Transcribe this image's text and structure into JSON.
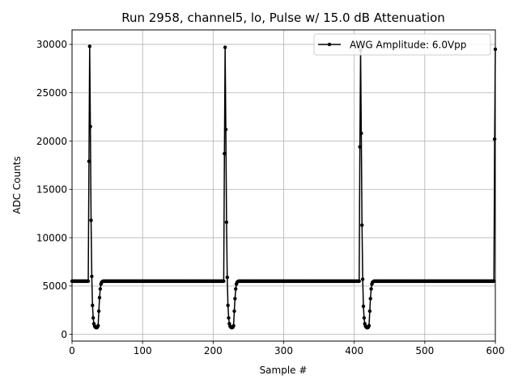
{
  "chart_data": {
    "type": "line",
    "title": "Run 2958, channel5, lo, Pulse w/ 15.0 dB Attenuation",
    "xlabel": "Sample #",
    "ylabel": "ADC Counts",
    "xlim": [
      0,
      600
    ],
    "ylim": [
      -700,
      31500
    ],
    "xticks": [
      0,
      100,
      200,
      300,
      400,
      500,
      600
    ],
    "yticks": [
      0,
      5000,
      10000,
      15000,
      20000,
      25000,
      30000
    ],
    "grid": true,
    "legend_position": "top-right",
    "baseline": 5500,
    "series": [
      {
        "name": "AWG Amplitude: 6.0Vpp",
        "color": "#000000",
        "marker": "point",
        "x": [
          24,
          25,
          26,
          27,
          28,
          29,
          30,
          31,
          32,
          33,
          34,
          35,
          36,
          37,
          38,
          39,
          40,
          41,
          42,
          43,
          44,
          45,
          46,
          47,
          48,
          216,
          217,
          218,
          219,
          220,
          221,
          222,
          223,
          224,
          225,
          226,
          227,
          228,
          229,
          230,
          231,
          232,
          233,
          234,
          235,
          236,
          237,
          238,
          239,
          240,
          408,
          409,
          410,
          411,
          412,
          413,
          414,
          415,
          416,
          417,
          418,
          419,
          420,
          421,
          422,
          423,
          424,
          425,
          426,
          427,
          428,
          429,
          430,
          431,
          432,
          599,
          600
        ],
        "y": [
          17900,
          29800,
          21500,
          11800,
          6000,
          3000,
          1700,
          1100,
          850,
          750,
          700,
          700,
          750,
          900,
          2400,
          3800,
          4700,
          5200,
          5400,
          5450,
          5500,
          5500,
          5500,
          5500,
          5500,
          18700,
          29700,
          21200,
          11600,
          5900,
          3000,
          1700,
          1100,
          850,
          750,
          700,
          700,
          750,
          900,
          2400,
          3700,
          4700,
          5200,
          5400,
          5450,
          5500,
          5500,
          5500,
          5500,
          5500,
          19400,
          29400,
          20800,
          11300,
          5700,
          2900,
          1700,
          1100,
          850,
          750,
          700,
          700,
          750,
          900,
          2400,
          3700,
          4700,
          5200,
          5400,
          5450,
          5500,
          5500,
          5500,
          5500,
          5500,
          20200,
          29500
        ]
      }
    ]
  }
}
